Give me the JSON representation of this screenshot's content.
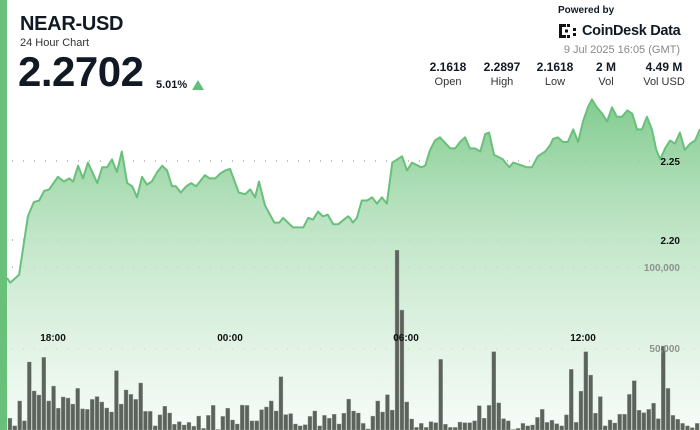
{
  "header": {
    "ticker": "NEAR-USD",
    "subtitle": "24 Hour Chart",
    "price": "2.2702",
    "change": "5.01%",
    "change_direction": "up",
    "accent_color": "#68c07a"
  },
  "branding": {
    "powered_by": "Powered by",
    "logo_text": "CoinDesk Data",
    "timestamp": "9 Jul 2025 16:05 (GMT)"
  },
  "stats": [
    {
      "value": "2.1618",
      "label": "Open"
    },
    {
      "value": "2.2897",
      "label": "High"
    },
    {
      "value": "2.1618",
      "label": "Low"
    },
    {
      "value": "2 M",
      "label": "Vol"
    },
    {
      "value": "4.49 M",
      "label": "Vol USD"
    }
  ],
  "chart_data": {
    "type": "area",
    "line_color": "#68c07a",
    "volume_color": "#5c635d",
    "grid": "dotted horizontal",
    "x_ticks": [
      "18:00",
      "00:00",
      "06:00",
      "12:00"
    ],
    "price_axis": {
      "ticks": [
        "2.25",
        "2.20"
      ],
      "ticks_values": [
        2.25,
        2.2
      ],
      "position": "right"
    },
    "volume_axis": {
      "ticks": [
        "100,000",
        "50,000"
      ],
      "ticks_values": [
        100000,
        50000
      ],
      "position": "right"
    },
    "price_series": [
      [
        "16:26",
        2.176
      ],
      [
        "16:33",
        2.173
      ],
      [
        "16:51",
        2.178
      ],
      [
        "17:09",
        2.215
      ],
      [
        "17:21",
        2.224
      ],
      [
        "17:32",
        2.225
      ],
      [
        "17:42",
        2.231
      ],
      [
        "17:52",
        2.232
      ],
      [
        "18:10",
        2.24
      ],
      [
        "18:22",
        2.237
      ],
      [
        "18:33",
        2.239
      ],
      [
        "18:41",
        2.237
      ],
      [
        "18:51",
        2.247
      ],
      [
        "19:01",
        2.239
      ],
      [
        "19:11",
        2.249
      ],
      [
        "19:30",
        2.236
      ],
      [
        "19:40",
        2.246
      ],
      [
        "19:50",
        2.246
      ],
      [
        "20:00",
        2.251
      ],
      [
        "20:10",
        2.243
      ],
      [
        "20:20",
        2.256
      ],
      [
        "20:31",
        2.236
      ],
      [
        "20:41",
        2.234
      ],
      [
        "20:51",
        2.227
      ],
      [
        "21:01",
        2.24
      ],
      [
        "21:11",
        2.235
      ],
      [
        "21:21",
        2.237
      ],
      [
        "21:32",
        2.243
      ],
      [
        "21:42",
        2.247
      ],
      [
        "21:52",
        2.244
      ],
      [
        "22:02",
        2.234
      ],
      [
        "22:10",
        2.234
      ],
      [
        "22:20",
        2.23
      ],
      [
        "22:31",
        2.234
      ],
      [
        "22:41",
        2.236
      ],
      [
        "22:51",
        2.234
      ],
      [
        "23:09",
        2.241
      ],
      [
        "23:19",
        2.239
      ],
      [
        "23:30",
        2.239
      ],
      [
        "23:40",
        2.242
      ],
      [
        "23:50",
        2.244
      ],
      [
        "00:00",
        2.245
      ],
      [
        "00:18",
        2.23
      ],
      [
        "00:31",
        2.229
      ],
      [
        "00:41",
        2.232
      ],
      [
        "00:51",
        2.227
      ],
      [
        "00:59",
        2.237
      ],
      [
        "01:11",
        2.222
      ],
      [
        "01:30",
        2.211
      ],
      [
        "01:40",
        2.211
      ],
      [
        "01:48",
        2.214
      ],
      [
        "02:08",
        2.208
      ],
      [
        "02:29",
        2.208
      ],
      [
        "02:39",
        2.214
      ],
      [
        "02:49",
        2.213
      ],
      [
        "02:59",
        2.218
      ],
      [
        "03:09",
        2.215
      ],
      [
        "03:19",
        2.216
      ],
      [
        "03:30",
        2.21
      ],
      [
        "03:40",
        2.21
      ],
      [
        "04:00",
        2.215
      ],
      [
        "04:04",
        2.214
      ],
      [
        "04:10",
        2.211
      ],
      [
        "04:18",
        2.214
      ],
      [
        "04:28",
        2.225
      ],
      [
        "04:39",
        2.225
      ],
      [
        "04:49",
        2.227
      ],
      [
        "04:59",
        2.223
      ],
      [
        "05:09",
        2.227
      ],
      [
        "05:19",
        2.223
      ],
      [
        "05:30",
        2.249
      ],
      [
        "05:40",
        2.251
      ],
      [
        "05:50",
        2.253
      ],
      [
        "06:00",
        2.244
      ],
      [
        "06:10",
        2.249
      ],
      [
        "06:29",
        2.246
      ],
      [
        "06:37",
        2.247
      ],
      [
        "06:47",
        2.257
      ],
      [
        "06:57",
        2.263
      ],
      [
        "07:07",
        2.265
      ],
      [
        "07:28",
        2.258
      ],
      [
        "07:38",
        2.258
      ],
      [
        "07:48",
        2.262
      ],
      [
        "07:58",
        2.265
      ],
      [
        "08:08",
        2.258
      ],
      [
        "08:18",
        2.258
      ],
      [
        "08:29",
        2.256
      ],
      [
        "08:39",
        2.267
      ],
      [
        "08:47",
        2.268
      ],
      [
        "08:57",
        2.254
      ],
      [
        "09:15",
        2.251
      ],
      [
        "09:28",
        2.246
      ],
      [
        "09:36",
        2.249
      ],
      [
        "09:46",
        2.248
      ],
      [
        "10:04",
        2.246
      ],
      [
        "10:14",
        2.246
      ],
      [
        "10:26",
        2.253
      ],
      [
        "10:41",
        2.256
      ],
      [
        "10:51",
        2.26
      ],
      [
        "10:57",
        2.264
      ],
      [
        "11:07",
        2.265
      ],
      [
        "11:17",
        2.262
      ],
      [
        "11:27",
        2.262
      ],
      [
        "11:38",
        2.27
      ],
      [
        "11:48",
        2.262
      ],
      [
        "11:58",
        2.275
      ],
      [
        "12:08",
        2.284
      ],
      [
        "12:16",
        2.289
      ],
      [
        "12:26",
        2.284
      ],
      [
        "12:37",
        2.28
      ],
      [
        "12:47",
        2.275
      ],
      [
        "12:57",
        2.284
      ],
      [
        "13:07",
        2.278
      ],
      [
        "13:17",
        2.278
      ],
      [
        "13:28",
        2.282
      ],
      [
        "13:38",
        2.28
      ],
      [
        "13:48",
        2.27
      ],
      [
        "13:58",
        2.27
      ],
      [
        "14:08",
        2.278
      ],
      [
        "14:18",
        2.27
      ],
      [
        "14:27",
        2.257
      ],
      [
        "14:35",
        2.251
      ],
      [
        "14:45",
        2.258
      ],
      [
        "14:55",
        2.263
      ],
      [
        "15:05",
        2.261
      ],
      [
        "15:15",
        2.268
      ],
      [
        "15:25",
        2.257
      ],
      [
        "15:36",
        2.261
      ],
      [
        "15:46",
        2.263
      ],
      [
        "15:56",
        2.2702
      ]
    ],
    "volume_series": [
      7200,
      2500,
      17900,
      5600,
      42000,
      24100,
      21600,
      44800,
      17900,
      27100,
      13400,
      20400,
      19700,
      16000,
      25700,
      13000,
      12700,
      18900,
      20600,
      17300,
      13600,
      11100,
      36600,
      16000,
      24700,
      22000,
      18900,
      29000,
      11500,
      11500,
      2500,
      9300,
      14600,
      10500,
      3500,
      5100,
      3100,
      4700,
      2300,
      8600,
      1000,
      9000,
      15200,
      300,
      8400,
      13400,
      6200,
      3700,
      15400,
      15200,
      5600,
      5600,
      12500,
      14200,
      17900,
      11700,
      32900,
      9500,
      10100,
      3700,
      2500,
      3300,
      8400,
      11700,
      2500,
      9000,
      7200,
      9700,
      3700,
      10300,
      19100,
      11700,
      10500,
      4100,
      600,
      8600,
      17900,
      11100,
      21800,
      12300,
      111000,
      74000,
      17300,
      6800,
      1600,
      4100,
      1600,
      5100,
      4500,
      43600,
      3500,
      1600,
      1600,
      4900,
      4500,
      4500,
      5600,
      15000,
      7200,
      15200,
      48300,
      16700,
      7000,
      5600,
      300,
      1000,
      4100,
      2500,
      3100,
      7800,
      12700,
      4700,
      6000,
      3900,
      2500,
      9300,
      37400,
      4700,
      23900,
      48300,
      33900,
      10300,
      20600,
      2500,
      6200,
      4300,
      9700,
      9700,
      22000,
      30400,
      12200,
      10700,
      12700,
      16500,
      7000,
      51800,
      25700,
      9000,
      6600,
      4100,
      2500,
      1400,
      4100
    ]
  }
}
